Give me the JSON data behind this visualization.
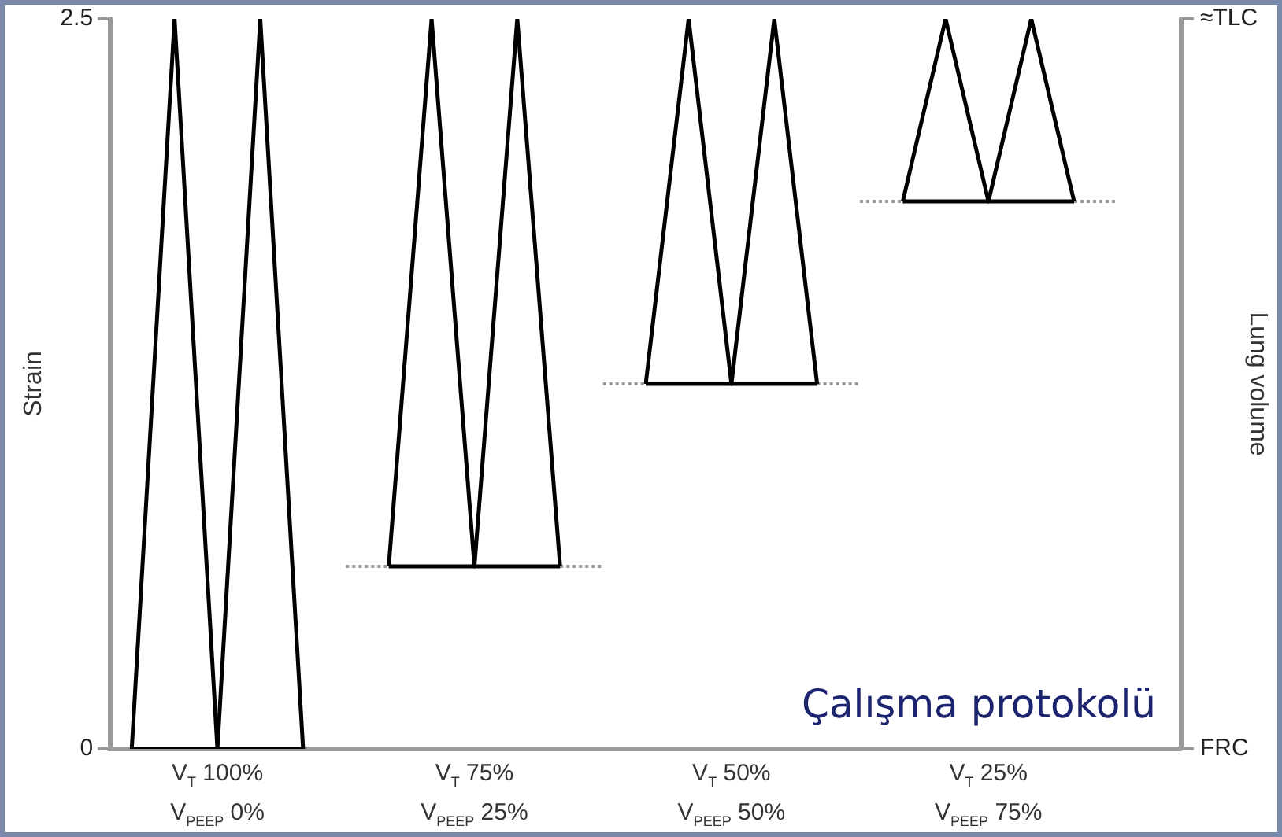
{
  "chart_data": {
    "type": "line",
    "ylabel": "Strain",
    "y2label": "Lung volume",
    "marker": "none",
    "line_style": "solid",
    "grid": false,
    "legend": false,
    "categories": [
      null,
      null,
      "V$_{T}$ 100%\nV$_{PEEP}$ 0%",
      null,
      null,
      null,
      null,
      null,
      "V$_{T}$ 75%\nV$_{PEEP}$ 25%",
      null,
      null,
      null,
      null,
      null,
      "V$_{T}$ 50%\nV$_{PEEP}$ 50%",
      null,
      null,
      null,
      null,
      null,
      "V$_{T}$ 25%\nV$_{PEEP}$ 75%",
      null,
      null,
      null,
      null
    ],
    "ylim": [
      0,
      2.5
    ],
    "yticks": [
      0,
      2.5
    ],
    "annotations": [
      "≈TLC",
      "FRC",
      "Çalışma protokolü"
    ],
    "series": [
      {
        "color": "#000000",
        "values": [
          0,
          2.5,
          0,
          2.5,
          0,
          null,
          null,
          null,
          null,
          null,
          null,
          null,
          null,
          null,
          null,
          null,
          null,
          null,
          null,
          null,
          null,
          null,
          null,
          null,
          null
        ]
      },
      {
        "color": "#000000",
        "values": [
          0,
          0,
          0,
          0,
          0,
          null,
          null,
          null,
          null,
          null,
          null,
          null,
          null,
          null,
          null,
          null,
          null,
          null,
          null,
          null,
          null,
          null,
          null,
          null,
          null
        ]
      },
      {
        "color": "#000000",
        "values": [
          null,
          null,
          null,
          null,
          null,
          null,
          0.625,
          2.5,
          0.625,
          2.5,
          0.625,
          null,
          null,
          null,
          null,
          null,
          null,
          null,
          null,
          null,
          null,
          null,
          null,
          null,
          null
        ]
      },
      {
        "color": "#000000",
        "values": [
          null,
          null,
          null,
          null,
          null,
          null,
          0.625,
          0.625,
          0.625,
          0.625,
          0.625,
          null,
          null,
          null,
          null,
          null,
          null,
          null,
          null,
          null,
          null,
          null,
          null,
          null,
          null
        ]
      },
      {
        "color": "#999999",
        "line_style": "dotted",
        "values": [
          null,
          null,
          null,
          null,
          null,
          0.625,
          0.625,
          null,
          null,
          null,
          null,
          null,
          null,
          null,
          null,
          null,
          null,
          null,
          null,
          null,
          null,
          null,
          null,
          null,
          null
        ]
      },
      {
        "color": "#999999",
        "line_style": "dotted",
        "values": [
          null,
          null,
          null,
          null,
          null,
          null,
          null,
          null,
          null,
          null,
          0.625,
          0.625,
          null,
          null,
          null,
          null,
          null,
          null,
          null,
          null,
          null,
          null,
          null,
          null,
          null
        ]
      },
      {
        "color": "#000000",
        "values": [
          null,
          null,
          null,
          null,
          null,
          null,
          null,
          null,
          null,
          null,
          null,
          null,
          1.25,
          2.5,
          1.25,
          2.5,
          1.25,
          null,
          null,
          null,
          null,
          null,
          null,
          null,
          null
        ]
      },
      {
        "color": "#000000",
        "values": [
          null,
          null,
          null,
          null,
          null,
          null,
          null,
          null,
          null,
          null,
          null,
          null,
          1.25,
          1.25,
          1.25,
          1.25,
          1.25,
          null,
          null,
          null,
          null,
          null,
          null,
          null,
          null
        ]
      },
      {
        "color": "#999999",
        "line_style": "dotted",
        "values": [
          null,
          null,
          null,
          null,
          null,
          null,
          null,
          null,
          null,
          null,
          null,
          1.25,
          1.25,
          null,
          null,
          null,
          null,
          null,
          null,
          null,
          null,
          null,
          null,
          null,
          null
        ]
      },
      {
        "color": "#999999",
        "line_style": "dotted",
        "values": [
          null,
          null,
          null,
          null,
          null,
          null,
          null,
          null,
          null,
          null,
          null,
          null,
          null,
          null,
          null,
          null,
          1.25,
          1.25,
          null,
          null,
          null,
          null,
          null,
          null,
          null
        ]
      },
      {
        "color": "#000000",
        "values": [
          null,
          null,
          null,
          null,
          null,
          null,
          null,
          null,
          null,
          null,
          null,
          null,
          null,
          null,
          null,
          null,
          null,
          null,
          1.875,
          2.5,
          1.875,
          2.5,
          1.875,
          null,
          null
        ]
      },
      {
        "color": "#000000",
        "values": [
          null,
          null,
          null,
          null,
          null,
          null,
          null,
          null,
          null,
          null,
          null,
          null,
          null,
          null,
          null,
          null,
          null,
          null,
          1.875,
          1.875,
          1.875,
          1.875,
          1.875,
          null,
          null
        ]
      },
      {
        "color": "#999999",
        "line_style": "dotted",
        "values": [
          null,
          null,
          null,
          null,
          null,
          null,
          null,
          null,
          null,
          null,
          null,
          null,
          null,
          null,
          null,
          null,
          null,
          1.875,
          1.875,
          null,
          null,
          null,
          null,
          null,
          null
        ]
      },
      {
        "color": "#999999",
        "line_style": "dotted",
        "values": [
          null,
          null,
          null,
          null,
          null,
          null,
          null,
          null,
          null,
          null,
          null,
          null,
          null,
          null,
          null,
          null,
          null,
          null,
          null,
          null,
          null,
          null,
          1.875,
          1.875,
          null
        ]
      }
    ]
  }
}
